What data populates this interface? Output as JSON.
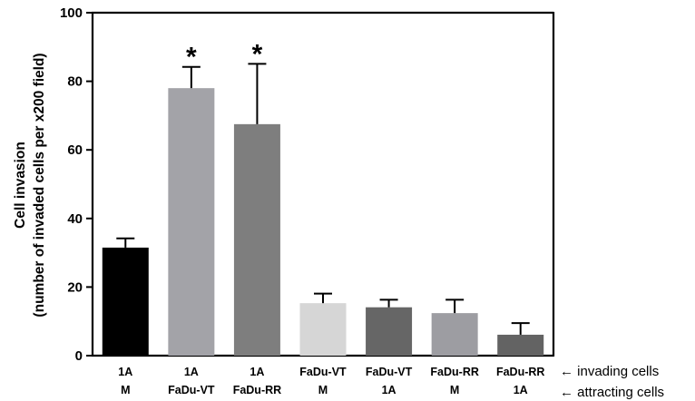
{
  "chart_data": {
    "type": "bar",
    "ylabel_line1": "Cell invasion",
    "ylabel_line2": "(number of invaded cells per x200 field)",
    "ylim": [
      0,
      100
    ],
    "yticks": [
      0,
      20,
      40,
      60,
      80,
      100
    ],
    "grid": false,
    "categories": [
      {
        "invading": "1A",
        "attracting": "M"
      },
      {
        "invading": "1A",
        "attracting": "FaDu-VT"
      },
      {
        "invading": "1A",
        "attracting": "FaDu-RR"
      },
      {
        "invading": "FaDu-VT",
        "attracting": "M"
      },
      {
        "invading": "FaDu-VT",
        "attracting": "1A"
      },
      {
        "invading": "FaDu-RR",
        "attracting": "M"
      },
      {
        "invading": "FaDu-RR",
        "attracting": "1A"
      }
    ],
    "values": [
      31.5,
      78,
      67.5,
      15.3,
      14.1,
      12.4,
      6.1
    ],
    "errors": [
      2.7,
      6.2,
      17.6,
      2.8,
      2.2,
      3.9,
      3.4
    ],
    "colors": [
      "#000000",
      "#a3a3a8",
      "#7e7e7e",
      "#d6d6d6",
      "#666666",
      "#9d9da2",
      "#636363"
    ],
    "significance": [
      "",
      "*",
      "*",
      "",
      "",
      "",
      ""
    ],
    "row_legend": {
      "invading": "← invading cells",
      "attracting": "← attracting cells"
    }
  }
}
